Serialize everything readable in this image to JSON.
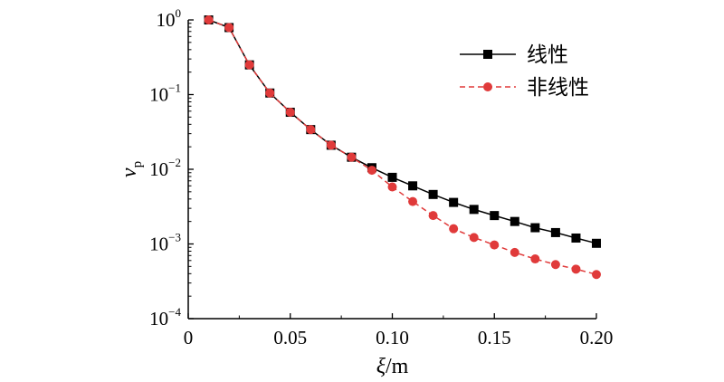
{
  "chart_data": {
    "type": "line",
    "title": "",
    "xlabel": {
      "symbol": "ξ",
      "unit": "/m"
    },
    "ylabel": {
      "symbol": "v",
      "subscript": "p"
    },
    "x_axis": {
      "range": [
        0,
        0.2
      ],
      "ticks": [
        0,
        0.05,
        0.1,
        0.15,
        0.2
      ],
      "tick_labels": [
        "0",
        "0.05",
        "0.10",
        "0.15",
        "0.20"
      ]
    },
    "y_axis": {
      "scale": "log",
      "range": [
        0.0001,
        1
      ],
      "ticks": [
        1,
        0.1,
        0.01,
        0.001,
        0.0001
      ],
      "tick_labels": [
        {
          "base": "10",
          "exp": "0"
        },
        {
          "base": "10",
          "exp": "−1"
        },
        {
          "base": "10",
          "exp": "−2"
        },
        {
          "base": "10",
          "exp": "−3"
        },
        {
          "base": "10",
          "exp": "−4"
        }
      ]
    },
    "grid": false,
    "legend_position": "top-right",
    "x": [
      0.01,
      0.02,
      0.03,
      0.04,
      0.05,
      0.06,
      0.07,
      0.08,
      0.09,
      0.1,
      0.11,
      0.12,
      0.13,
      0.14,
      0.15,
      0.16,
      0.17,
      0.18,
      0.19,
      0.2
    ],
    "series": [
      {
        "name": "线性",
        "color": "#000000",
        "marker": "square",
        "line_style": "solid",
        "values": [
          1.0,
          0.79,
          0.25,
          0.105,
          0.058,
          0.034,
          0.021,
          0.0145,
          0.0105,
          0.0078,
          0.006,
          0.0046,
          0.0036,
          0.0029,
          0.0024,
          0.002,
          0.00165,
          0.00142,
          0.0012,
          0.00102
        ]
      },
      {
        "name": "非线性",
        "color": "#e03a3a",
        "marker": "circle",
        "line_style": "dashed",
        "values": [
          1.0,
          0.79,
          0.25,
          0.105,
          0.058,
          0.034,
          0.021,
          0.0145,
          0.0097,
          0.0058,
          0.0037,
          0.0024,
          0.0016,
          0.00122,
          0.00097,
          0.00077,
          0.00063,
          0.00053,
          0.00046,
          0.00039
        ]
      }
    ]
  }
}
